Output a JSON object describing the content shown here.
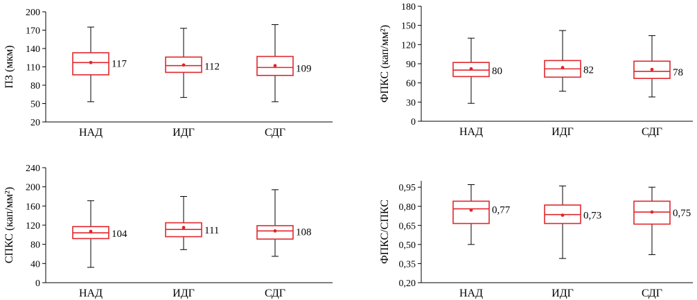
{
  "colors": {
    "box": "#e0262b",
    "axis": "#000000",
    "whisker": "#000000"
  },
  "chart_data": [
    {
      "type": "boxplot",
      "ylabel": "ПЗ (мкм)",
      "ylim": [
        20,
        200
      ],
      "yticks": [
        "20",
        "50",
        "80",
        "110",
        "140",
        "170",
        "200"
      ],
      "ytick_values": [
        20,
        50,
        80,
        110,
        140,
        170,
        200
      ],
      "categories": [
        "НАД",
        "ИДГ",
        "СДГ"
      ],
      "boxes": [
        {
          "min": 53,
          "q1": 97,
          "median": 117,
          "q3": 133,
          "max": 175,
          "mean": 117
        },
        {
          "min": 60,
          "q1": 101,
          "median": 112,
          "q3": 126,
          "max": 173,
          "mean": 113
        },
        {
          "min": 53,
          "q1": 96,
          "median": 109,
          "q3": 127,
          "max": 179,
          "mean": 112
        }
      ],
      "labels": [
        "117",
        "112",
        "109"
      ]
    },
    {
      "type": "boxplot",
      "ylabel": "ФПКС (кап/мм²)",
      "ylim": [
        0,
        180
      ],
      "yticks": [
        "0",
        "30",
        "60",
        "90",
        "120",
        "150",
        "180"
      ],
      "ytick_values": [
        0,
        30,
        60,
        90,
        120,
        150,
        180
      ],
      "categories": [
        "НАД",
        "ИДГ",
        "СДГ"
      ],
      "boxes": [
        {
          "min": 28,
          "q1": 70,
          "median": 80,
          "q3": 92,
          "max": 130,
          "mean": 82
        },
        {
          "min": 47,
          "q1": 69,
          "median": 82,
          "q3": 95,
          "max": 142,
          "mean": 84
        },
        {
          "min": 38,
          "q1": 67,
          "median": 78,
          "q3": 94,
          "max": 134,
          "mean": 81
        }
      ],
      "labels": [
        "80",
        "82",
        "78"
      ]
    },
    {
      "type": "boxplot",
      "ylabel": "СПКС (кап/мм²)",
      "ylim": [
        0,
        240
      ],
      "yticks": [
        "0",
        "40",
        "80",
        "120",
        "160",
        "200",
        "240"
      ],
      "ytick_values": [
        0,
        40,
        80,
        120,
        160,
        200,
        240
      ],
      "categories": [
        "НАД",
        "ИДГ",
        "СДГ"
      ],
      "boxes": [
        {
          "min": 32,
          "q1": 92,
          "median": 104,
          "q3": 117,
          "max": 171,
          "mean": 107
        },
        {
          "min": 69,
          "q1": 96,
          "median": 111,
          "q3": 125,
          "max": 180,
          "mean": 115
        },
        {
          "min": 55,
          "q1": 91,
          "median": 108,
          "q3": 119,
          "max": 194,
          "mean": 108
        }
      ],
      "labels": [
        "104",
        "111",
        "108"
      ]
    },
    {
      "type": "boxplot",
      "ylabel": "ФПКС/СПКС",
      "ylim": [
        0.2,
        1.0
      ],
      "yticks": [
        "0,20",
        "0,35",
        "0,50",
        "0,65",
        "0,80",
        "0,95"
      ],
      "ytick_values": [
        0.2,
        0.35,
        0.5,
        0.65,
        0.8,
        0.95
      ],
      "categories": [
        "НАД",
        "ИДГ",
        "СДГ"
      ],
      "boxes": [
        {
          "min": 0.5,
          "q1": 0.665,
          "median": 0.78,
          "q3": 0.84,
          "max": 0.97,
          "mean": 0.77
        },
        {
          "min": 0.39,
          "q1": 0.665,
          "median": 0.735,
          "q3": 0.81,
          "max": 0.96,
          "mean": 0.73
        },
        {
          "min": 0.42,
          "q1": 0.66,
          "median": 0.755,
          "q3": 0.84,
          "max": 0.95,
          "mean": 0.755
        }
      ],
      "labels": [
        "0,77",
        "0,73",
        "0,75"
      ]
    }
  ]
}
